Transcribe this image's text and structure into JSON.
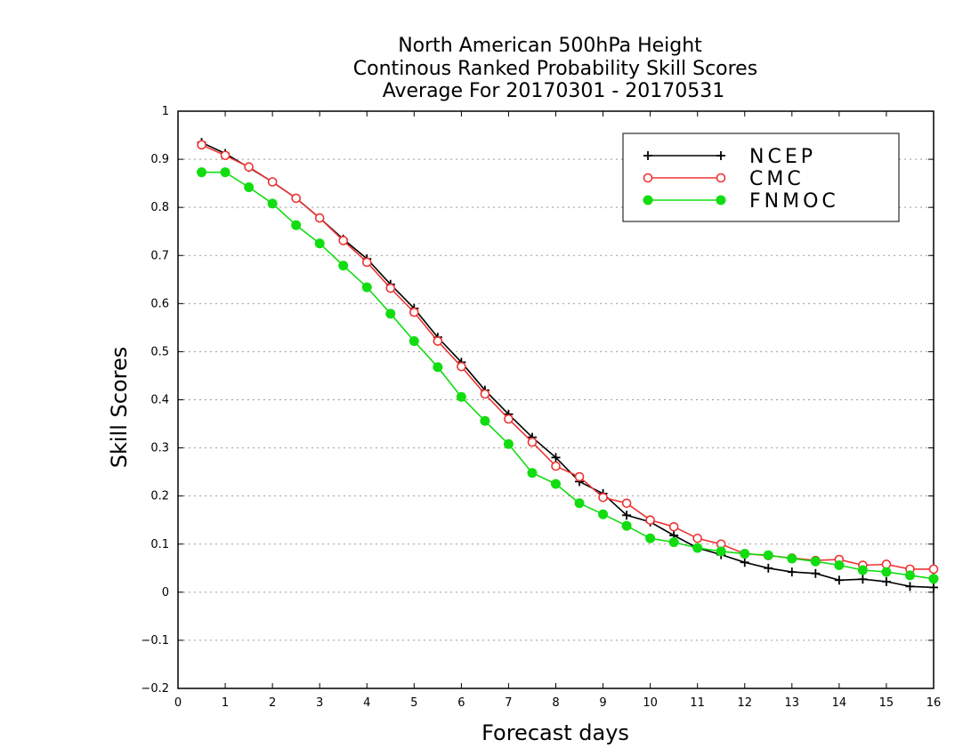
{
  "chart_data": {
    "type": "line",
    "title": [
      "North American 500hPa Height",
      "Continous Ranked Probability Skill Scores",
      "Average For 20170301 - 20170531"
    ],
    "xlabel": "Forecast days",
    "ylabel": "Skill Scores",
    "xlim": [
      0,
      16
    ],
    "ylim": [
      -0.2,
      1
    ],
    "xticks": [
      0,
      1,
      2,
      3,
      4,
      5,
      6,
      7,
      8,
      9,
      10,
      11,
      12,
      13,
      14,
      15,
      16
    ],
    "yticks": [
      -0.2,
      -0.1,
      0,
      0.1,
      0.2,
      0.3,
      0.4,
      0.5,
      0.6,
      0.7,
      0.8,
      0.9,
      1
    ],
    "ytick_labels": [
      "−0.2",
      "−0.1",
      "0",
      "0.1",
      "0.2",
      "0.3",
      "0.4",
      "0.5",
      "0.6",
      "0.7",
      "0.8",
      "0.9",
      "1"
    ],
    "grid": "horizontal dotted",
    "legend_position": "top-right",
    "x": [
      0.5,
      1,
      1.5,
      2,
      2.5,
      3,
      3.5,
      4,
      4.5,
      5,
      5.5,
      6,
      6.5,
      7,
      7.5,
      8,
      8.5,
      9,
      9.5,
      10,
      10.5,
      11,
      11.5,
      12,
      12.5,
      13,
      13.5,
      14,
      14.5,
      15,
      15.5,
      16
    ],
    "series": [
      {
        "name": "NCEP",
        "color": "#000000",
        "marker": "plus",
        "values": [
          0.935,
          0.912,
          0.883,
          0.853,
          0.819,
          0.778,
          0.734,
          0.693,
          0.64,
          0.59,
          0.53,
          0.478,
          0.42,
          0.37,
          0.322,
          0.28,
          0.23,
          0.205,
          0.16,
          0.146,
          0.118,
          0.092,
          0.078,
          0.062,
          0.05,
          0.042,
          0.039,
          0.025,
          0.027,
          0.022,
          0.012,
          0.01
        ]
      },
      {
        "name": "CMC",
        "color": "#ee3333",
        "marker": "open-circle",
        "values": [
          0.93,
          0.908,
          0.884,
          0.853,
          0.819,
          0.778,
          0.731,
          0.686,
          0.632,
          0.582,
          0.522,
          0.469,
          0.412,
          0.36,
          0.312,
          0.262,
          0.24,
          0.197,
          0.185,
          0.15,
          0.136,
          0.112,
          0.1,
          0.08,
          0.076,
          0.071,
          0.066,
          0.068,
          0.056,
          0.058,
          0.048,
          0.048
        ]
      },
      {
        "name": "FNMOC",
        "color": "#11dd11",
        "marker": "filled-circle",
        "values": [
          0.873,
          0.873,
          0.842,
          0.808,
          0.763,
          0.725,
          0.679,
          0.634,
          0.579,
          0.522,
          0.468,
          0.406,
          0.356,
          0.308,
          0.248,
          0.225,
          0.185,
          0.162,
          0.138,
          0.112,
          0.104,
          0.092,
          0.085,
          0.08,
          0.077,
          0.07,
          0.064,
          0.056,
          0.046,
          0.042,
          0.035,
          0.028
        ]
      }
    ]
  }
}
